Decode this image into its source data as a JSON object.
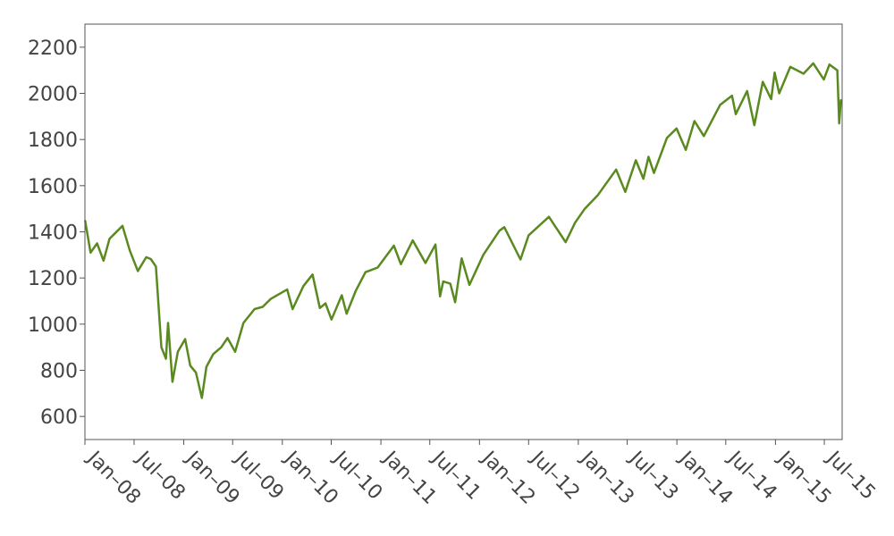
{
  "chart_data": {
    "type": "line",
    "title": "",
    "xlabel": "",
    "ylabel": "",
    "x_range": [
      "2008-01-01",
      "2015-09-05"
    ],
    "ylim": [
      500,
      2300
    ],
    "grid": false,
    "legend": "none",
    "line_color": "#5a8a1f",
    "y_ticks": [
      600,
      800,
      1000,
      1200,
      1400,
      1600,
      1800,
      2000,
      2200
    ],
    "x_ticks": [
      {
        "date": "2008-01-01",
        "label": "Jan–08"
      },
      {
        "date": "2008-07-01",
        "label": "Jul–08"
      },
      {
        "date": "2009-01-01",
        "label": "Jan–09"
      },
      {
        "date": "2009-07-01",
        "label": "Jul–09"
      },
      {
        "date": "2010-01-01",
        "label": "Jan–10"
      },
      {
        "date": "2010-07-01",
        "label": "Jul–10"
      },
      {
        "date": "2011-01-01",
        "label": "Jan–11"
      },
      {
        "date": "2011-07-01",
        "label": "Jul–11"
      },
      {
        "date": "2012-01-01",
        "label": "Jan–12"
      },
      {
        "date": "2012-07-01",
        "label": "Jul–12"
      },
      {
        "date": "2013-01-01",
        "label": "Jan–13"
      },
      {
        "date": "2013-07-01",
        "label": "Jul–13"
      },
      {
        "date": "2014-01-01",
        "label": "Jan–14"
      },
      {
        "date": "2014-07-01",
        "label": "Jul–14"
      },
      {
        "date": "2015-01-01",
        "label": "Jan–15"
      },
      {
        "date": "2015-07-01",
        "label": "Jul–15"
      }
    ],
    "series": [
      {
        "x": [
          "2008-01-02",
          "2008-01-22",
          "2008-02-15",
          "2008-03-10",
          "2008-04-01",
          "2008-05-19",
          "2008-06-15",
          "2008-07-15",
          "2008-08-15",
          "2008-09-01",
          "2008-09-20",
          "2008-10-10",
          "2008-10-27",
          "2008-11-04",
          "2008-11-20",
          "2008-12-10",
          "2009-01-06",
          "2009-01-25",
          "2009-02-15",
          "2009-03-09",
          "2009-03-26",
          "2009-04-20",
          "2009-05-20",
          "2009-06-12",
          "2009-07-10",
          "2009-08-10",
          "2009-09-20",
          "2009-10-20",
          "2009-11-20",
          "2010-01-19",
          "2010-02-08",
          "2010-03-20",
          "2010-04-23",
          "2010-05-20",
          "2010-06-10",
          "2010-07-02",
          "2010-08-09",
          "2010-08-27",
          "2010-09-30",
          "2010-11-05",
          "2010-12-20",
          "2011-02-18",
          "2011-03-16",
          "2011-04-29",
          "2011-06-15",
          "2011-07-22",
          "2011-08-08",
          "2011-08-20",
          "2011-09-15",
          "2011-10-03",
          "2011-10-27",
          "2011-11-25",
          "2012-01-15",
          "2012-03-15",
          "2012-04-02",
          "2012-06-01",
          "2012-07-01",
          "2012-09-14",
          "2012-11-15",
          "2012-12-20",
          "2013-01-25",
          "2013-03-15",
          "2013-05-21",
          "2013-06-24",
          "2013-08-02",
          "2013-08-30",
          "2013-09-18",
          "2013-10-08",
          "2013-11-25",
          "2013-12-31",
          "2014-02-03",
          "2014-03-07",
          "2014-04-11",
          "2014-06-10",
          "2014-07-24",
          "2014-08-07",
          "2014-09-18",
          "2014-10-15",
          "2014-11-15",
          "2014-12-16",
          "2014-12-29",
          "2015-01-15",
          "2015-02-25",
          "2015-04-15",
          "2015-05-21",
          "2015-06-29",
          "2015-07-20",
          "2015-08-18",
          "2015-08-25",
          "2015-08-31"
        ],
        "values": [
          1447,
          1310,
          1350,
          1275,
          1370,
          1426,
          1320,
          1230,
          1290,
          1282,
          1250,
          900,
          850,
          1005,
          750,
          880,
          935,
          820,
          790,
          680,
          815,
          870,
          900,
          940,
          880,
          1005,
          1065,
          1075,
          1110,
          1150,
          1065,
          1165,
          1215,
          1070,
          1090,
          1020,
          1125,
          1045,
          1145,
          1225,
          1245,
          1340,
          1260,
          1363,
          1265,
          1345,
          1120,
          1185,
          1175,
          1095,
          1285,
          1170,
          1300,
          1405,
          1420,
          1280,
          1385,
          1465,
          1355,
          1440,
          1500,
          1560,
          1670,
          1573,
          1710,
          1630,
          1725,
          1655,
          1807,
          1848,
          1755,
          1880,
          1815,
          1950,
          1990,
          1910,
          2010,
          1862,
          2050,
          1975,
          2090,
          2000,
          2115,
          2085,
          2130,
          2060,
          2125,
          2100,
          1870,
          1970
        ]
      }
    ]
  }
}
